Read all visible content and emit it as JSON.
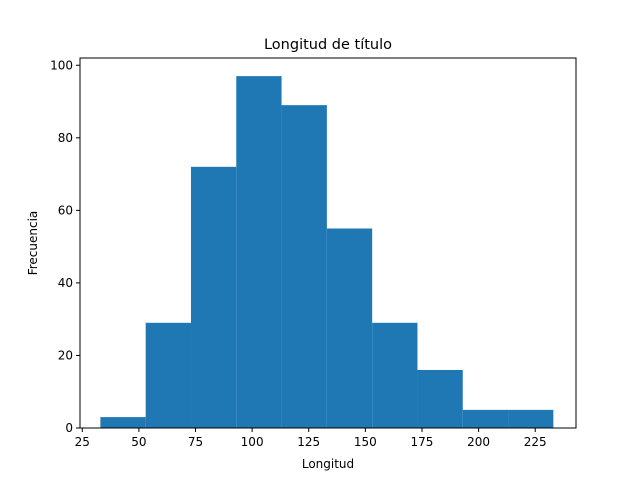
{
  "chart_data": {
    "type": "bar",
    "title": "Longitud de título",
    "xlabel": "Longitud",
    "ylabel": "Frecuencia",
    "xlim": [
      24,
      243
    ],
    "ylim": [
      0,
      102
    ],
    "xticks": [
      25,
      50,
      75,
      100,
      125,
      150,
      175,
      200,
      225
    ],
    "yticks": [
      0,
      20,
      40,
      60,
      80,
      100
    ],
    "bins": [
      {
        "x0": 33,
        "x1": 53,
        "value": 3
      },
      {
        "x0": 53,
        "x1": 73,
        "value": 29
      },
      {
        "x0": 73,
        "x1": 93,
        "value": 72
      },
      {
        "x0": 93,
        "x1": 113,
        "value": 97
      },
      {
        "x0": 113,
        "x1": 133,
        "value": 89
      },
      {
        "x0": 133,
        "x1": 153,
        "value": 55
      },
      {
        "x0": 153,
        "x1": 173,
        "value": 29
      },
      {
        "x0": 173,
        "x1": 193,
        "value": 16
      },
      {
        "x0": 193,
        "x1": 213,
        "value": 5
      },
      {
        "x0": 213,
        "x1": 233,
        "value": 5
      }
    ],
    "bar_color": "#1f77b4",
    "grid": false,
    "legend": "none"
  }
}
